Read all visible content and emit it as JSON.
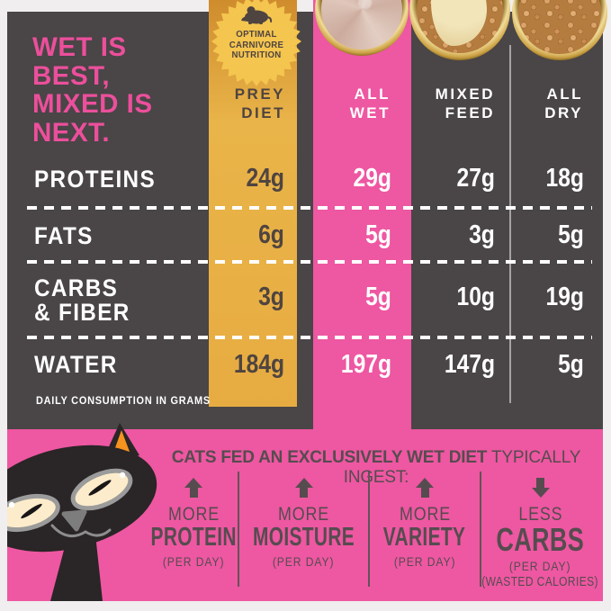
{
  "colors": {
    "background": "#f0eeee",
    "panel_dark": "#4a4546",
    "pink": "#ee57a2",
    "heading_pink": "#ec4f9c",
    "gold_top": "#cf8c2d",
    "gold_bottom": "#e7ac41",
    "badge_gold": "#f4c54f",
    "value_dark": "#4f4440",
    "bottom_text": "#564c4f",
    "white": "#ffffff"
  },
  "heading": {
    "line1": "WET IS",
    "line2": "BEST,",
    "line3": "MIXED IS",
    "line4": "NEXT."
  },
  "badge": {
    "icon": "mouse-icon",
    "line1": "OPTIMAL",
    "line2": "CARNIVORE",
    "line3": "NUTRITION"
  },
  "columns": {
    "prey": {
      "label": "PREY\nDIET"
    },
    "wet": {
      "label": "ALL\nWET"
    },
    "mixed": {
      "label": "MIXED\nFEED"
    },
    "dry": {
      "label": "ALL\nDRY"
    }
  },
  "rows": [
    {
      "label": "PROTEINS",
      "prey": "24g",
      "wet": "29g",
      "mixed": "27g",
      "dry": "18g"
    },
    {
      "label": "FATS",
      "prey": "6g",
      "wet": "5g",
      "mixed": "3g",
      "dry": "5g"
    },
    {
      "label": "CARBS\n& FIBER",
      "prey": "3g",
      "wet": "5g",
      "mixed": "10g",
      "dry": "19g"
    },
    {
      "label": "WATER",
      "prey": "184g",
      "wet": "197g",
      "mixed": "147g",
      "dry": "5g"
    }
  ],
  "footnote": "DAILY CONSUMPTION IN GRAMS",
  "bowls": {
    "wet": "wet-food-bowl",
    "mixed": "mixed-food-bowl",
    "dry": "dry-food-bowl"
  },
  "bottom": {
    "headline_bold": "CATS FED AN EXCLUSIVELY WET DIET",
    "headline_rest": " TYPICALLY INGEST:",
    "items": [
      {
        "arrow": "up",
        "qualifier": "MORE",
        "title": "PROTEIN",
        "sub": "(PER DAY)"
      },
      {
        "arrow": "up",
        "qualifier": "MORE",
        "title": "MOISTURE",
        "sub": "(PER DAY)"
      },
      {
        "arrow": "up",
        "qualifier": "MORE",
        "title": "VARIETY",
        "sub": "(PER DAY)"
      },
      {
        "arrow": "down",
        "qualifier": "LESS",
        "title": "CARBS",
        "sub": "(PER DAY)",
        "sub2": "(WASTED CALORIES)"
      }
    ]
  },
  "chart_data": {
    "type": "table",
    "title": "WET IS BEST, MIXED IS NEXT.",
    "columns": [
      "PREY DIET",
      "ALL WET",
      "MIXED FEED",
      "ALL DRY"
    ],
    "rows": [
      "PROTEINS",
      "FATS",
      "CARBS & FIBER",
      "WATER"
    ],
    "values_grams": [
      [
        24,
        29,
        27,
        18
      ],
      [
        6,
        5,
        3,
        5
      ],
      [
        3,
        5,
        10,
        19
      ],
      [
        184,
        197,
        147,
        5
      ]
    ],
    "units": "grams per day",
    "note": "DAILY CONSUMPTION IN GRAMS",
    "highlight_column": "ALL WET",
    "badge_column": "PREY DIET",
    "callout": "CATS FED AN EXCLUSIVELY WET DIET TYPICALLY INGEST: MORE PROTEIN (PER DAY), MORE MOISTURE (PER DAY), MORE VARIETY (PER DAY), LESS CARBS (PER DAY) (WASTED CALORIES)"
  }
}
